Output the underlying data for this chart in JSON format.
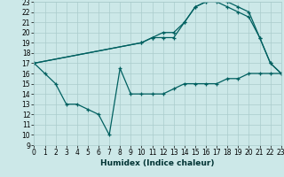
{
  "bg_color": "#cce8e8",
  "grid_color": "#aacccc",
  "line_color": "#006060",
  "xlim": [
    0,
    23
  ],
  "ylim": [
    9,
    23
  ],
  "xticks": [
    0,
    1,
    2,
    3,
    4,
    5,
    6,
    7,
    8,
    9,
    10,
    11,
    12,
    13,
    14,
    15,
    16,
    17,
    18,
    19,
    20,
    21,
    22,
    23
  ],
  "yticks": [
    9,
    10,
    11,
    12,
    13,
    14,
    15,
    16,
    17,
    18,
    19,
    20,
    21,
    22,
    23
  ],
  "xlabel": "Humidex (Indice chaleur)",
  "curve_low_x": [
    0,
    1,
    2,
    3,
    4,
    5,
    6,
    7,
    8,
    9,
    10,
    11,
    12,
    13,
    14,
    15,
    16,
    17,
    18,
    19,
    20,
    21,
    22,
    23
  ],
  "curve_low_y": [
    17,
    16,
    15,
    13,
    13,
    12.5,
    12,
    10,
    16.5,
    14,
    14,
    14,
    14,
    14.5,
    15,
    15,
    15,
    15,
    15.5,
    15.5,
    16,
    16,
    16,
    16
  ],
  "curve_mid_x": [
    0,
    10,
    11,
    12,
    13,
    14,
    15,
    16,
    17,
    18,
    19,
    20,
    21,
    22,
    23
  ],
  "curve_mid_y": [
    17,
    19,
    19.5,
    19.5,
    19.5,
    21,
    22.5,
    23,
    23,
    22.5,
    22,
    21.5,
    19.5,
    17,
    16
  ],
  "curve_top_x": [
    0,
    10,
    11,
    12,
    13,
    14,
    15,
    16,
    17,
    18,
    19,
    20,
    21,
    22,
    23
  ],
  "curve_top_y": [
    17,
    19,
    19.5,
    20,
    20,
    21,
    22.5,
    23,
    23.5,
    23,
    22.5,
    22,
    19.5,
    17,
    16
  ],
  "label_fontsize": 5.5,
  "xlabel_fontsize": 6.5
}
